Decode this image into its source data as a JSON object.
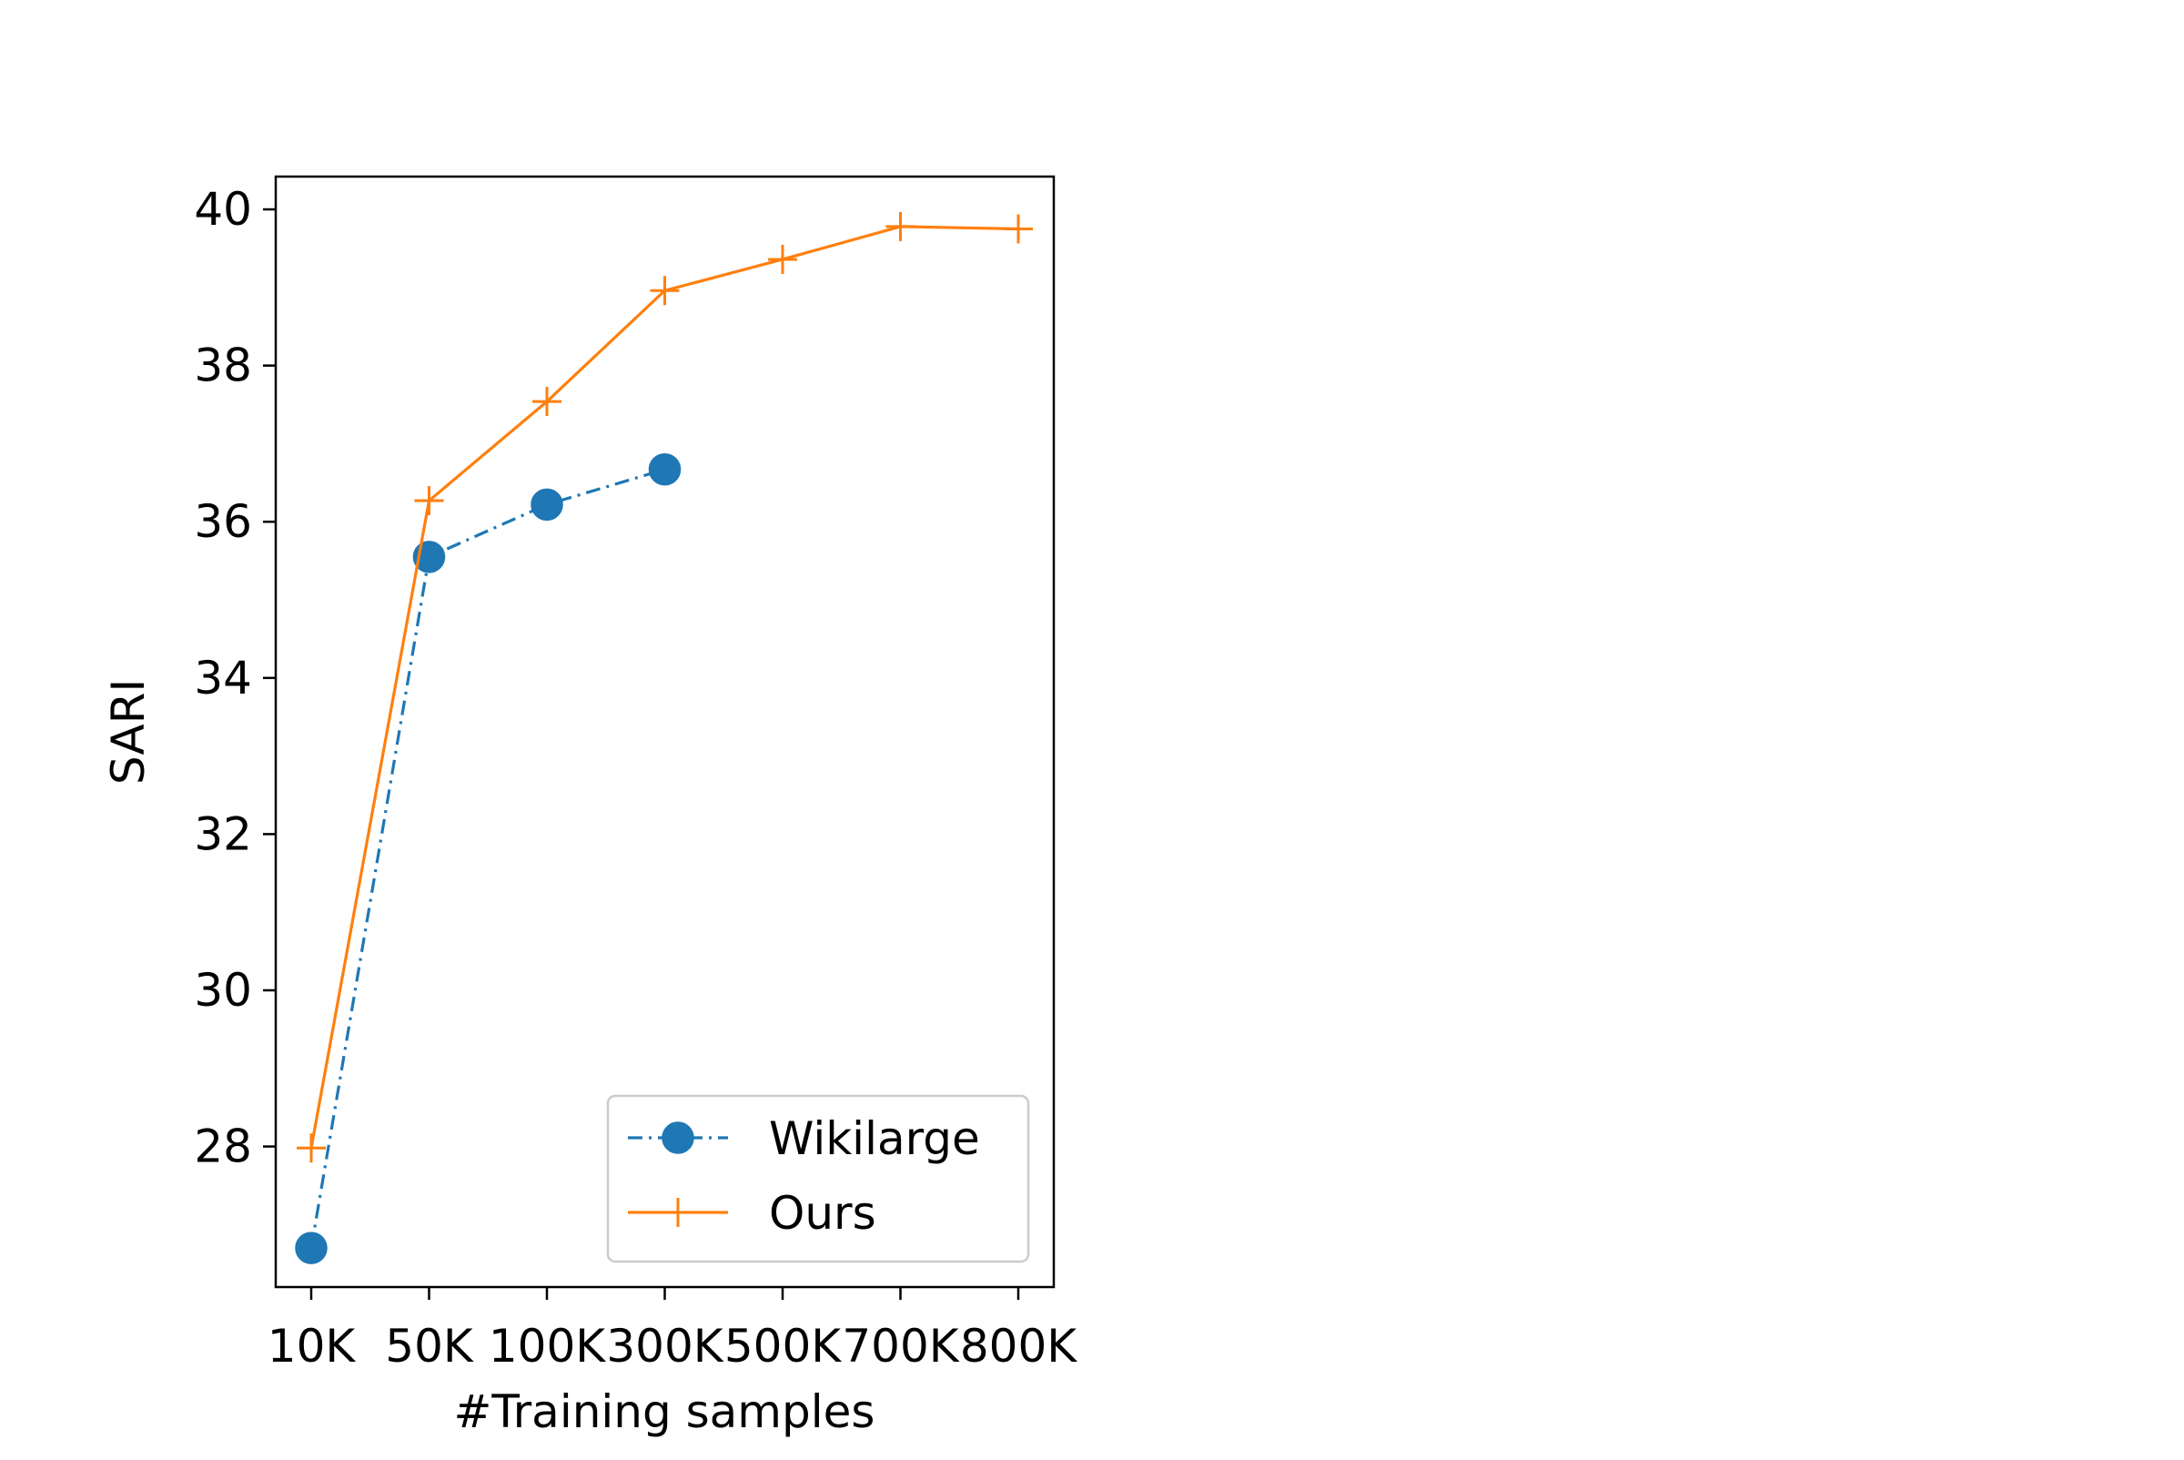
{
  "chart_data": {
    "type": "line",
    "title": "",
    "xlabel": "#Training samples",
    "ylabel": "SARI",
    "categories": [
      "10K",
      "50K",
      "100K",
      "300K",
      "500K",
      "700K",
      "800K"
    ],
    "ylim": [
      26.2,
      40.42
    ],
    "yticks": [
      28,
      30,
      32,
      34,
      36,
      38,
      40
    ],
    "grid": false,
    "legend_position": "lower-right",
    "series": [
      {
        "name": "Wikilarge",
        "values": [
          26.7,
          35.55,
          36.22,
          36.67,
          null,
          null,
          null
        ],
        "color": "#1f77b4",
        "line_style": "dash-dot",
        "marker": "circle"
      },
      {
        "name": "Ours",
        "values": [
          27.98,
          36.27,
          37.54,
          38.96,
          39.36,
          39.78,
          39.75
        ],
        "color": "#ff7f0e",
        "line_style": "solid",
        "marker": "plus"
      }
    ]
  }
}
